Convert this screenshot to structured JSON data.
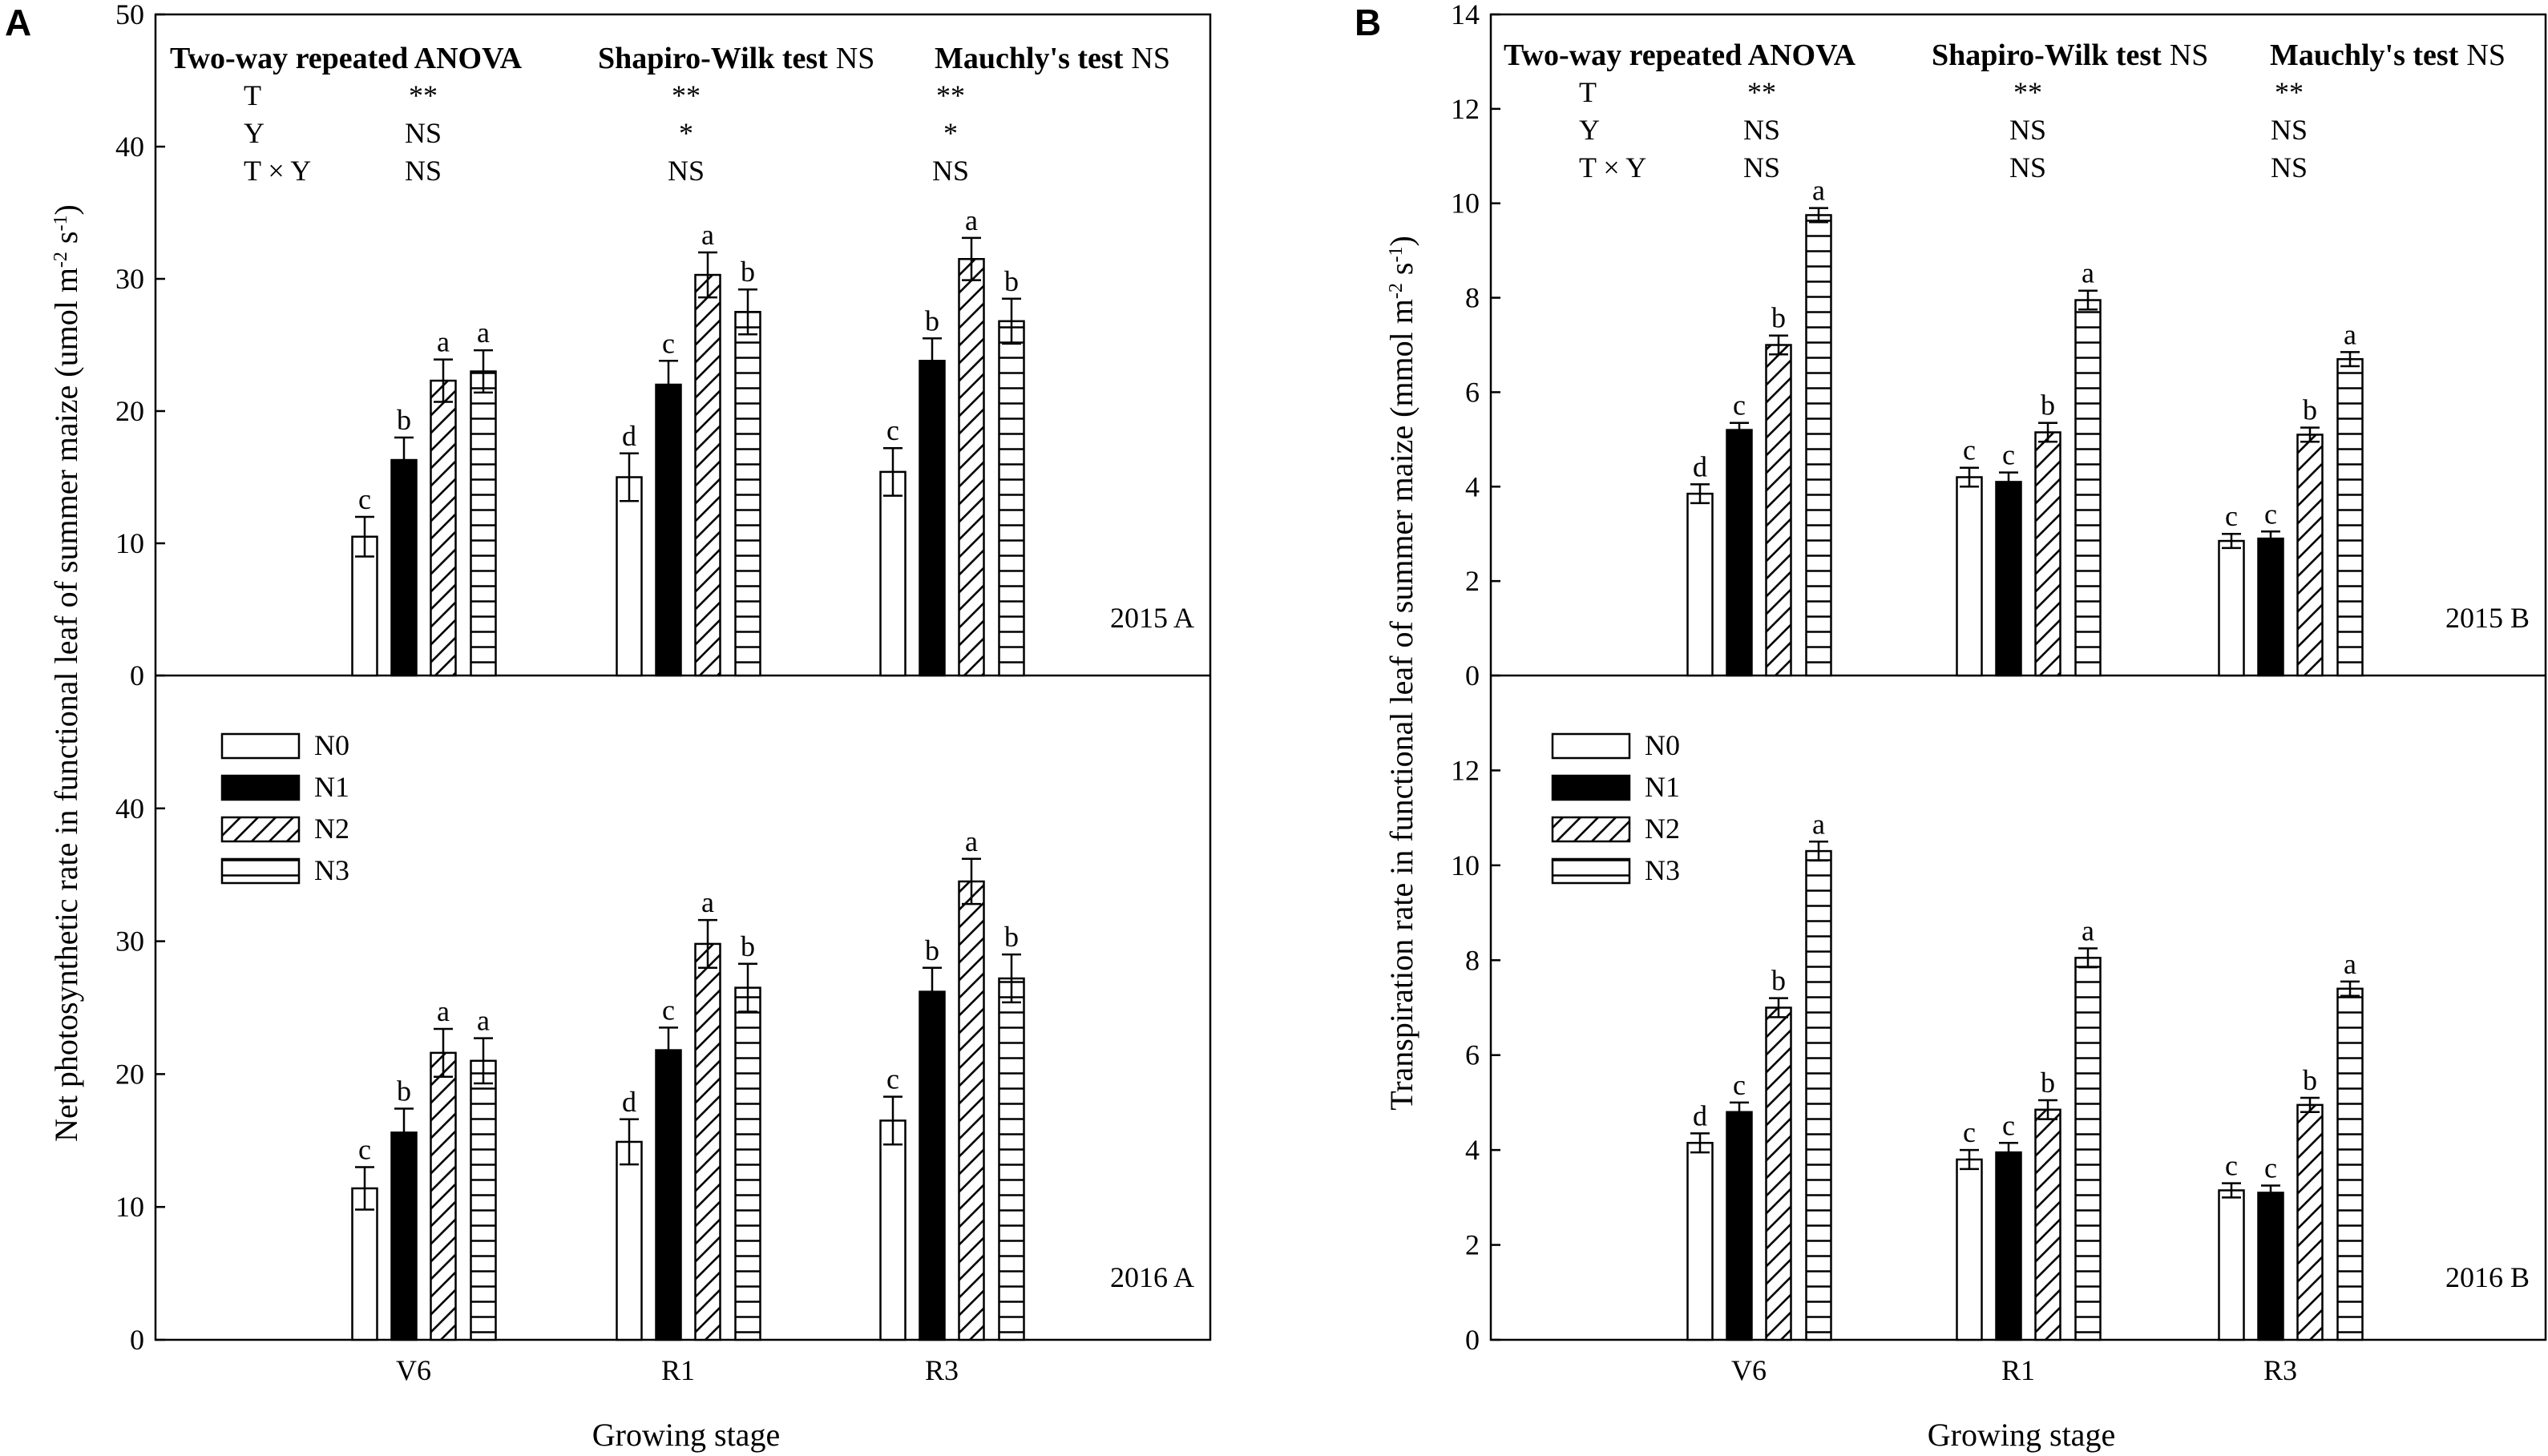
{
  "figure": {
    "xlabel": "Growing stage",
    "categories": [
      "V6",
      "R1",
      "R3"
    ],
    "treatments": [
      "N0",
      "N1",
      "N2",
      "N3"
    ],
    "stats_headers": [
      {
        "bold": "Two-way repeated ANOVA",
        "normal": ""
      },
      {
        "bold": "Shapiro-Wilk test",
        "normal": "NS"
      },
      {
        "bold": "Mauchly's test",
        "normal": "NS"
      }
    ],
    "stats_row_labels": [
      "T",
      "Y",
      "T × Y"
    ]
  },
  "chart_data": [
    {
      "type": "bar",
      "panel": "A",
      "ylabel": "Net photosynthetic rate in functional leaf of summer maize (umol m-2 s-1)",
      "ylabel_main": "Net photosynthetic rate in functional leaf of summer maize (umol m",
      "ylabel_sup1": "-2",
      "ylabel_mid": " s",
      "ylabel_sup2": "-1",
      "ylabel_end": ")",
      "subplots": [
        {
          "tag": "2015  A",
          "ylim": [
            0,
            50
          ],
          "yticks": [
            0,
            10,
            20,
            30,
            40,
            50
          ],
          "series": [
            {
              "name": "N0",
              "values": [
                10.5,
                15.0,
                15.4
              ],
              "errors": [
                1.5,
                1.8,
                1.8
              ],
              "letters": [
                "c",
                "d",
                "c"
              ]
            },
            {
              "name": "N1",
              "values": [
                16.3,
                22.0,
                23.8
              ],
              "errors": [
                1.7,
                1.8,
                1.7
              ],
              "letters": [
                "b",
                "c",
                "b"
              ]
            },
            {
              "name": "N2",
              "values": [
                22.3,
                30.3,
                31.5
              ],
              "errors": [
                1.6,
                1.7,
                1.6
              ],
              "letters": [
                "a",
                "a",
                "a"
              ]
            },
            {
              "name": "N3",
              "values": [
                23.0,
                27.5,
                26.8
              ],
              "errors": [
                1.6,
                1.7,
                1.7
              ],
              "letters": [
                "a",
                "b",
                "b"
              ]
            }
          ],
          "stats": {
            "anova": [
              "**",
              "NS",
              "NS"
            ],
            "shapiro": [
              "**",
              "*",
              "NS"
            ],
            "mauchly": [
              "**",
              "*",
              "NS"
            ]
          }
        },
        {
          "tag": "2016  A",
          "ylim": [
            0,
            50
          ],
          "yticks": [
            0,
            10,
            20,
            30,
            40
          ],
          "series": [
            {
              "name": "N0",
              "values": [
                11.4,
                14.9,
                16.5
              ],
              "errors": [
                1.6,
                1.7,
                1.8
              ],
              "letters": [
                "c",
                "d",
                "c"
              ]
            },
            {
              "name": "N1",
              "values": [
                15.6,
                21.8,
                26.2
              ],
              "errors": [
                1.8,
                1.7,
                1.8
              ],
              "letters": [
                "b",
                "c",
                "b"
              ]
            },
            {
              "name": "N2",
              "values": [
                21.6,
                29.8,
                34.5
              ],
              "errors": [
                1.8,
                1.8,
                1.7
              ],
              "letters": [
                "a",
                "a",
                "a"
              ]
            },
            {
              "name": "N3",
              "values": [
                21.0,
                26.5,
                27.2
              ],
              "errors": [
                1.7,
                1.8,
                1.8
              ],
              "letters": [
                "a",
                "b",
                "b"
              ]
            }
          ]
        }
      ]
    },
    {
      "type": "bar",
      "panel": "B",
      "ylabel": "Transpiration rate in functional leaf of summer maize (mmol m-2 s-1)",
      "ylabel_main": "Transpiration rate in functional leaf of summer maize (mmol m",
      "ylabel_sup1": "-2",
      "ylabel_mid": " s",
      "ylabel_sup2": "-1",
      "ylabel_end": ")",
      "subplots": [
        {
          "tag": "2015  B",
          "ylim": [
            0,
            14
          ],
          "yticks": [
            0,
            2,
            4,
            6,
            8,
            10,
            12,
            14
          ],
          "series": [
            {
              "name": "N0",
              "values": [
                3.85,
                4.2,
                2.85
              ],
              "errors": [
                0.2,
                0.2,
                0.15
              ],
              "letters": [
                "d",
                "c",
                "c"
              ]
            },
            {
              "name": "N1",
              "values": [
                5.2,
                4.1,
                2.9
              ],
              "errors": [
                0.15,
                0.2,
                0.15
              ],
              "letters": [
                "c",
                "c",
                "c"
              ]
            },
            {
              "name": "N2",
              "values": [
                7.0,
                5.15,
                5.1
              ],
              "errors": [
                0.2,
                0.2,
                0.15
              ],
              "letters": [
                "b",
                "b",
                "b"
              ]
            },
            {
              "name": "N3",
              "values": [
                9.75,
                7.95,
                6.7
              ],
              "errors": [
                0.15,
                0.2,
                0.15
              ],
              "letters": [
                "a",
                "a",
                "a"
              ]
            }
          ],
          "stats": {
            "anova": [
              "**",
              "NS",
              "NS"
            ],
            "shapiro": [
              "**",
              "NS",
              "NS"
            ],
            "mauchly": [
              "**",
              "NS",
              "NS"
            ]
          }
        },
        {
          "tag": "2016  B",
          "ylim": [
            0,
            14
          ],
          "yticks": [
            0,
            2,
            4,
            6,
            8,
            10,
            12
          ],
          "series": [
            {
              "name": "N0",
              "values": [
                4.15,
                3.8,
                3.15
              ],
              "errors": [
                0.2,
                0.2,
                0.15
              ],
              "letters": [
                "d",
                "c",
                "c"
              ]
            },
            {
              "name": "N1",
              "values": [
                4.8,
                3.95,
                3.1
              ],
              "errors": [
                0.2,
                0.2,
                0.15
              ],
              "letters": [
                "c",
                "c",
                "c"
              ]
            },
            {
              "name": "N2",
              "values": [
                7.0,
                4.85,
                4.95
              ],
              "errors": [
                0.2,
                0.2,
                0.15
              ],
              "letters": [
                "b",
                "b",
                "b"
              ]
            },
            {
              "name": "N3",
              "values": [
                10.3,
                8.05,
                7.4
              ],
              "errors": [
                0.2,
                0.2,
                0.15
              ],
              "letters": [
                "a",
                "a",
                "a"
              ]
            }
          ]
        }
      ]
    }
  ]
}
